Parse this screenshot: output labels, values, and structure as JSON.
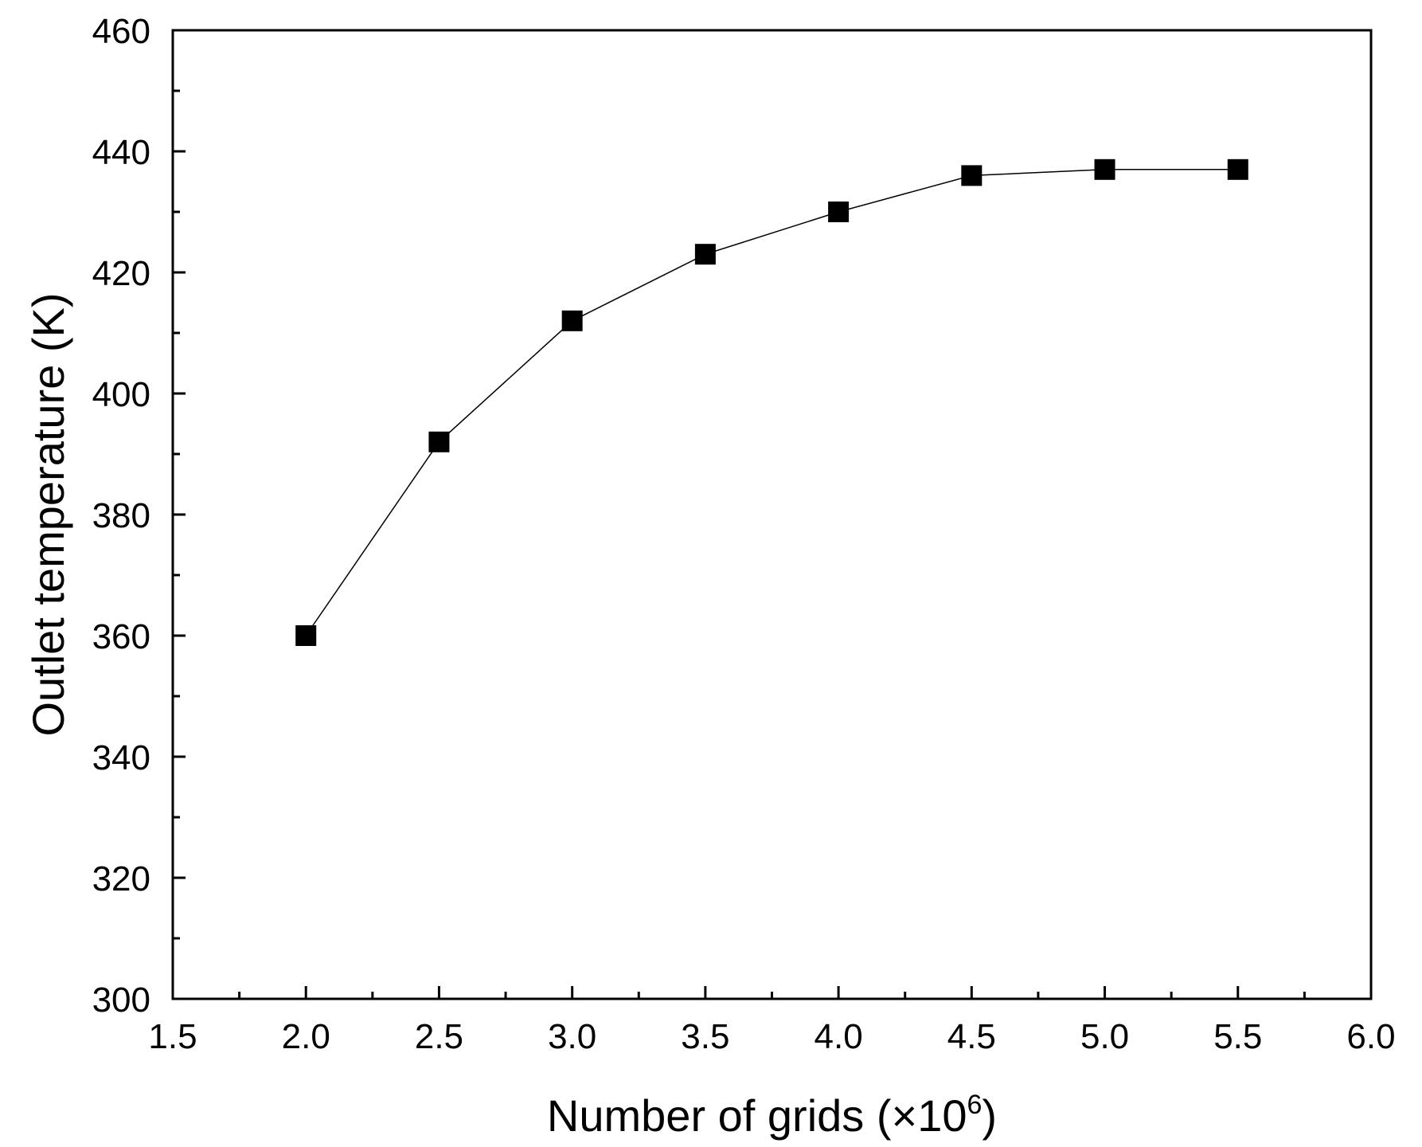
{
  "chart_data": {
    "type": "line",
    "title": "",
    "xlabel": "Number of grids (×10",
    "xlabel_superscript": "6",
    "xlabel_suffix": ")",
    "ylabel": "Outlet temperature (K)",
    "xlim": [
      1.5,
      6.0
    ],
    "ylim": [
      300,
      460
    ],
    "x_ticks": [
      "1.5",
      "2.0",
      "2.5",
      "3.0",
      "3.5",
      "4.0",
      "4.5",
      "5.0",
      "5.5",
      "6.0"
    ],
    "y_ticks": [
      "300",
      "320",
      "340",
      "360",
      "380",
      "400",
      "420",
      "440",
      "460"
    ],
    "grid": false,
    "marker": "square",
    "series": [
      {
        "x": [
          2.0,
          2.5,
          3.0,
          3.5,
          4.0,
          4.5,
          5.0,
          5.5
        ],
        "y": [
          360,
          392,
          412,
          423,
          430,
          436,
          437,
          437
        ]
      }
    ],
    "colors": {
      "line": "#000000",
      "marker": "#000000",
      "axis": "#000000"
    }
  }
}
